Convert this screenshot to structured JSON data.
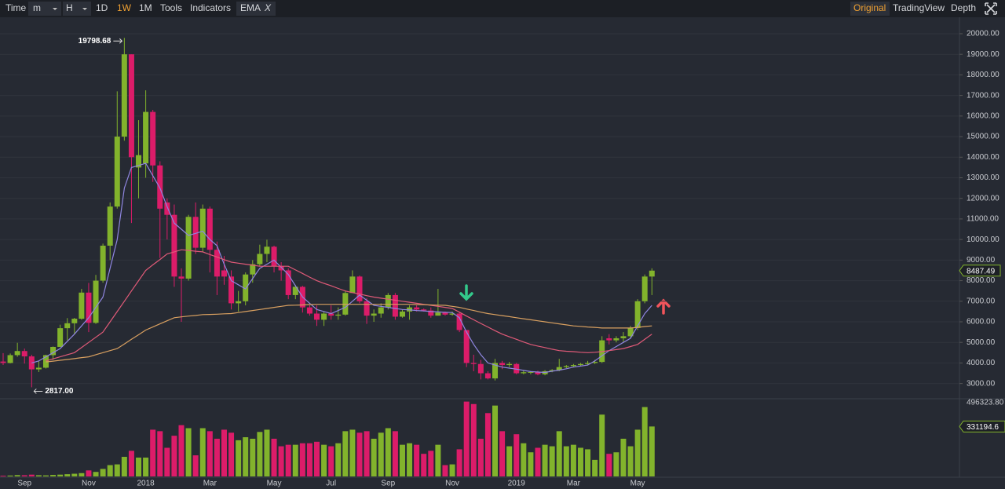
{
  "toolbar": {
    "left": [
      "Time",
      "m",
      "H",
      "1D",
      "1W",
      "1M",
      "Tools",
      "Indicators",
      "EMA",
      "X"
    ],
    "right": [
      "Original",
      "TradingView",
      "Depth"
    ]
  },
  "chart_data": {
    "type": "candlestick",
    "categories": [
      null,
      null,
      null,
      "Sep",
      null,
      null,
      null,
      null,
      null,
      null,
      null,
      null,
      "Nov",
      null,
      null,
      null,
      null,
      null,
      null,
      null,
      "2018",
      null,
      null,
      null,
      null,
      null,
      null,
      null,
      null,
      "Mar",
      null,
      null,
      null,
      null,
      null,
      null,
      null,
      null,
      "May",
      null,
      null,
      null,
      null,
      null,
      null,
      null,
      "Jul",
      null,
      null,
      null,
      null,
      null,
      null,
      null,
      "Sep",
      null,
      null,
      null,
      null,
      null,
      null,
      null,
      null,
      "Nov",
      null,
      null,
      null,
      null,
      null,
      null,
      null,
      null,
      "2019",
      null,
      null,
      null,
      null,
      null,
      null,
      null,
      "Mar",
      null,
      null,
      null,
      null,
      null,
      null,
      null,
      null,
      "May",
      null,
      null
    ],
    "open": [
      4070,
      4000,
      4380,
      4580,
      4320,
      3690,
      3770,
      4380,
      4780,
      5690,
      5930,
      6150,
      7420,
      5950,
      8000,
      9700,
      11600,
      15000,
      19000,
      13500,
      13700,
      16200,
      13600,
      11800,
      11200,
      8200,
      8100,
      11100,
      9600,
      11500,
      9500,
      8500,
      8200,
      6900,
      7000,
      8300,
      8800,
      9300,
      9650,
      8700,
      8500,
      7300,
      7700,
      6700,
      6400,
      6100,
      6400,
      6300,
      6350,
      7400,
      8200,
      7000,
      6300,
      6400,
      6700,
      7300,
      6250,
      6500,
      6700,
      6600,
      6550,
      6300,
      6450,
      6350,
      6400,
      5600,
      4000,
      3950,
      3500,
      3250,
      4000,
      3900,
      3950,
      3500,
      3530,
      3560,
      3450,
      3600,
      3650,
      3800,
      3850,
      3900,
      3950,
      4000,
      4050,
      5200,
      5100,
      5200,
      5300,
      5700,
      7000,
      8200
    ],
    "high": [
      4480,
      4460,
      4980,
      4700,
      4400,
      4100,
      4400,
      4800,
      5860,
      6180,
      6190,
      7600,
      7890,
      8280,
      9800,
      11800,
      17200,
      19798.68,
      19000,
      15800,
      17250,
      16300,
      13800,
      12000,
      11700,
      8600,
      11200,
      11800,
      11700,
      11600,
      9900,
      9200,
      8500,
      7500,
      8400,
      9000,
      9750,
      9990,
      9700,
      8900,
      8600,
      7800,
      7750,
      6800,
      6800,
      6500,
      6800,
      6700,
      7500,
      8500,
      8250,
      7150,
      6600,
      6900,
      7400,
      7400,
      6600,
      6800,
      6800,
      6650,
      6700,
      7600,
      6500,
      6500,
      6450,
      5600,
      4400,
      4150,
      3600,
      4200,
      4100,
      4050,
      4000,
      3650,
      3600,
      3620,
      3650,
      3700,
      4200,
      3900,
      3950,
      4000,
      4100,
      4150,
      5300,
      5400,
      5300,
      5500,
      5800,
      7100,
      8300,
      8600
    ],
    "low": [
      3900,
      3980,
      4300,
      3970,
      2817,
      3560,
      3730,
      4150,
      4780,
      5100,
      5400,
      6100,
      5500,
      5900,
      7900,
      9000,
      11500,
      14800,
      10800,
      12000,
      13000,
      12800,
      9100,
      10000,
      7700,
      6000,
      8000,
      9300,
      9400,
      8400,
      7300,
      7800,
      6600,
      6500,
      6800,
      7900,
      8700,
      8900,
      8400,
      8000,
      7100,
      7100,
      6450,
      6300,
      5800,
      5800,
      6100,
      6100,
      6300,
      7400,
      6900,
      5900,
      6000,
      6200,
      6600,
      6100,
      6200,
      6100,
      6500,
      6500,
      6200,
      6300,
      6300,
      6300,
      5500,
      3800,
      3600,
      3200,
      3200,
      3150,
      3700,
      3800,
      3450,
      3450,
      3450,
      3400,
      3400,
      3550,
      3600,
      3750,
      3800,
      3850,
      3900,
      3950,
      4000,
      4900,
      5000,
      5000,
      5200,
      5600,
      6900,
      7300
    ],
    "close": [
      4000,
      4380,
      4580,
      4320,
      3690,
      3770,
      4380,
      4780,
      5690,
      5930,
      6150,
      7420,
      5950,
      8000,
      9700,
      11600,
      15000,
      19000,
      14000,
      14100,
      16200,
      13600,
      11500,
      11200,
      8200,
      8100,
      11100,
      9600,
      11500,
      9500,
      8200,
      8200,
      6900,
      7000,
      8300,
      8800,
      9300,
      9650,
      8700,
      8500,
      7300,
      7700,
      6700,
      6400,
      6100,
      6400,
      6300,
      6350,
      7400,
      8200,
      7000,
      6300,
      6400,
      6700,
      7300,
      6250,
      6500,
      6700,
      6600,
      6550,
      6300,
      6450,
      6350,
      6400,
      5600,
      4000,
      3950,
      3500,
      3250,
      4000,
      3900,
      3950,
      3500,
      3550,
      3560,
      3450,
      3600,
      3650,
      3800,
      3850,
      3900,
      3950,
      4000,
      4050,
      5100,
      5100,
      5200,
      5300,
      5700,
      7000,
      8200,
      8487.49
    ],
    "volume": [
      5000,
      6000,
      9000,
      8000,
      12000,
      8000,
      7000,
      10000,
      12000,
      15000,
      18000,
      22000,
      40000,
      30000,
      50000,
      75000,
      80000,
      130000,
      170000,
      125000,
      125000,
      310000,
      300000,
      190000,
      270000,
      340000,
      320000,
      140000,
      320000,
      300000,
      250000,
      310000,
      290000,
      240000,
      260000,
      250000,
      295000,
      310000,
      250000,
      200000,
      210000,
      210000,
      220000,
      220000,
      230000,
      210000,
      200000,
      220000,
      300000,
      310000,
      290000,
      300000,
      250000,
      290000,
      320000,
      300000,
      210000,
      220000,
      210000,
      150000,
      170000,
      210000,
      75000,
      80000,
      180000,
      496323.8,
      480000,
      250000,
      420000,
      470000,
      300000,
      200000,
      280000,
      220000,
      160000,
      190000,
      210000,
      200000,
      300000,
      200000,
      210000,
      190000,
      180000,
      110000,
      410000,
      150000,
      160000,
      250000,
      200000,
      310000,
      460000,
      331194.6
    ],
    "ema": [
      {
        "color": "#8f86e0",
        "values": [
          null,
          null,
          null,
          null,
          4000,
          4100,
          4300,
          4500,
          4700,
          5050,
          5400,
          5800,
          6200,
          6700,
          7200,
          8600,
          10000,
          12500,
          13500,
          13600,
          13700,
          13100,
          12500,
          11600,
          10800,
          10500,
          10200,
          10300,
          10400,
          10000,
          9700,
          8800,
          8000,
          7800,
          7600,
          8100,
          8600,
          8800,
          9000,
          8650,
          8300,
          7750,
          7200,
          6900,
          6600,
          6500,
          6400,
          6550,
          6700,
          7000,
          7300,
          7050,
          6800,
          6750,
          6700,
          6650,
          6600,
          6580,
          6550,
          6530,
          6500,
          6480,
          6460,
          6450,
          6200,
          5500,
          4900,
          4400,
          4000,
          3900,
          3800,
          3750,
          3700,
          3640,
          3580,
          3560,
          3540,
          3600,
          3650,
          3720,
          3800,
          3850,
          3900,
          4100,
          4350,
          4600,
          4800,
          5000,
          5200,
          5800,
          6400,
          6800
        ]
      },
      {
        "color": "#e05a78",
        "values": [
          null,
          null,
          null,
          null,
          null,
          null,
          4100,
          4200,
          4300,
          4400,
          4500,
          4750,
          5000,
          5250,
          5500,
          6000,
          6500,
          7000,
          7500,
          8000,
          8500,
          8770,
          9030,
          9300,
          9400,
          9500,
          9470,
          9430,
          9400,
          9270,
          9150,
          9020,
          8900,
          8850,
          8800,
          8750,
          8700,
          8700,
          8700,
          8700,
          8700,
          8520,
          8350,
          8170,
          8000,
          7870,
          7750,
          7620,
          7500,
          7420,
          7350,
          7270,
          7200,
          7150,
          7100,
          7050,
          7000,
          6950,
          6900,
          6850,
          6800,
          6750,
          6700,
          6650,
          6470,
          6280,
          6100,
          5920,
          5750,
          5570,
          5400,
          5270,
          5150,
          5020,
          4900,
          4820,
          4750,
          4670,
          4600,
          4570,
          4550,
          4520,
          4500,
          4520,
          4550,
          4600,
          4650,
          4700,
          4800,
          4900,
          5150,
          5400
        ]
      },
      {
        "color": "#d9a060",
        "values": [
          null,
          null,
          null,
          null,
          null,
          null,
          4050,
          4090,
          4130,
          4170,
          4210,
          4260,
          4300,
          4400,
          4500,
          4600,
          4700,
          4920,
          5150,
          5370,
          5600,
          5750,
          5900,
          6050,
          6200,
          6240,
          6280,
          6310,
          6350,
          6360,
          6370,
          6390,
          6400,
          6450,
          6500,
          6550,
          6600,
          6650,
          6700,
          6750,
          6800,
          6810,
          6820,
          6840,
          6850,
          6850,
          6850,
          6850,
          6850,
          6850,
          6850,
          6850,
          6850,
          6850,
          6850,
          6850,
          6850,
          6850,
          6840,
          6830,
          6820,
          6810,
          6800,
          6750,
          6700,
          6620,
          6550,
          6470,
          6400,
          6350,
          6300,
          6250,
          6200,
          6150,
          6100,
          6050,
          6000,
          5950,
          5900,
          5850,
          5800,
          5780,
          5750,
          5730,
          5700,
          5700,
          5700,
          5700,
          5700,
          5730,
          5770,
          5800
        ]
      }
    ],
    "up_color": "#82b32c",
    "down_color": "#dc1c69",
    "ylim": [
      2300,
      20800
    ],
    "yticks": [
      {
        "value": 3000,
        "label": "3000.00"
      },
      {
        "value": 4000,
        "label": "4000.00"
      },
      {
        "value": 5000,
        "label": "5000.00"
      },
      {
        "value": 6000,
        "label": "6000.00"
      },
      {
        "value": 7000,
        "label": "7000.00"
      },
      {
        "value": 8000,
        "label": "8000.00"
      },
      {
        "value": 9000,
        "label": "9000.00"
      },
      {
        "value": 10000,
        "label": "10000.00"
      },
      {
        "value": 11000,
        "label": "11000.00"
      },
      {
        "value": 12000,
        "label": "12000.00"
      },
      {
        "value": 13000,
        "label": "13000.00"
      },
      {
        "value": 14000,
        "label": "14000.00"
      },
      {
        "value": 15000,
        "label": "15000.00"
      },
      {
        "value": 16000,
        "label": "16000.00"
      },
      {
        "value": 17000,
        "label": "17000.00"
      },
      {
        "value": 18000,
        "label": "18000.00"
      },
      {
        "value": 19000,
        "label": "19000.00"
      },
      {
        "value": 20000,
        "label": "20000.00"
      }
    ],
    "y2lim": [
      0,
      510000
    ],
    "y2ticks": [
      {
        "value": 496323.8,
        "label": "496323.80"
      }
    ],
    "annotations": {
      "max": "19798.68",
      "min": "2817.00"
    },
    "grid": true
  }
}
